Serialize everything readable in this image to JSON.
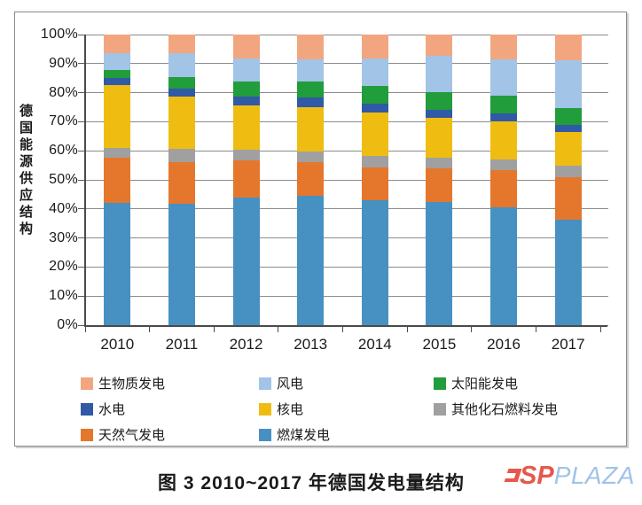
{
  "figure": {
    "caption": "图 3  2010~2017 年德国发电量结构",
    "y_axis": {
      "title": "德国能源供应结构",
      "tick_labels": [
        "100%",
        "90%",
        "80%",
        "70%",
        "60%",
        "50%",
        "40%",
        "30%",
        "20%",
        "10%",
        "0%"
      ]
    },
    "x_axis": {
      "categories": [
        "2010",
        "2011",
        "2012",
        "2013",
        "2014",
        "2015",
        "2016",
        "2017"
      ]
    },
    "legend": {
      "columns": [
        [
          {
            "label": "生物质发电",
            "color": "#F2A680"
          },
          {
            "label": "水电",
            "color": "#3059A6"
          },
          {
            "label": "天然气发电",
            "color": "#E5772D"
          }
        ],
        [
          {
            "label": "风电",
            "color": "#A2C4E6"
          },
          {
            "label": "核电",
            "color": "#EFBD12"
          },
          {
            "label": "燃煤发电",
            "color": "#4691C2"
          }
        ],
        [
          {
            "label": "太阳能发电",
            "color": "#219D3B"
          },
          {
            "label": "其他化石燃料发电",
            "color": "#A0A0A0"
          }
        ]
      ]
    },
    "watermark": {
      "red_text": "SP",
      "blue_text": "PLAZA",
      "red_color": "#E6584C",
      "blue_color": "#9FC3E8"
    }
  },
  "chart_data": {
    "type": "bar",
    "stacked": true,
    "title": "图 3  2010~2017 年德国发电量结构",
    "xlabel": "",
    "ylabel": "德国能源供应结构",
    "ylim": [
      0,
      100
    ],
    "ytick_step_percent": 10,
    "grid": true,
    "legend_position": "bottom",
    "categories": [
      "2010",
      "2011",
      "2012",
      "2013",
      "2014",
      "2015",
      "2016",
      "2017"
    ],
    "series_note": "values are percent of total generation; series listed bottom-to-top of stack",
    "series": [
      {
        "name": "燃煤发电",
        "color": "#4691C2",
        "values": [
          42.0,
          41.8,
          44.0,
          44.5,
          43.1,
          42.3,
          40.5,
          36.4
        ]
      },
      {
        "name": "天然气发电",
        "color": "#E5772D",
        "values": [
          15.5,
          14.4,
          12.8,
          11.6,
          11.1,
          11.6,
          12.8,
          14.5
        ]
      },
      {
        "name": "其他化石燃料发电",
        "color": "#A0A0A0",
        "values": [
          3.5,
          4.4,
          3.7,
          3.8,
          3.9,
          3.7,
          3.7,
          4.0
        ]
      },
      {
        "name": "核电",
        "color": "#EFBD12",
        "values": [
          21.7,
          18.0,
          15.2,
          15.2,
          15.1,
          13.7,
          13.2,
          11.6
        ]
      },
      {
        "name": "水电",
        "color": "#3059A6",
        "values": [
          2.5,
          2.8,
          3.0,
          3.2,
          3.1,
          2.7,
          2.7,
          2.5
        ]
      },
      {
        "name": "太阳能发电",
        "color": "#219D3B",
        "values": [
          2.5,
          4.0,
          5.0,
          5.5,
          6.1,
          6.1,
          6.1,
          5.6
        ]
      },
      {
        "name": "风电",
        "color": "#A2C4E6",
        "values": [
          5.8,
          8.2,
          8.2,
          7.6,
          9.3,
          12.6,
          12.4,
          16.7
        ]
      },
      {
        "name": "生物质发电",
        "color": "#F2A680",
        "values": [
          6.5,
          6.4,
          8.1,
          8.6,
          8.3,
          7.3,
          8.6,
          8.7
        ]
      }
    ]
  }
}
